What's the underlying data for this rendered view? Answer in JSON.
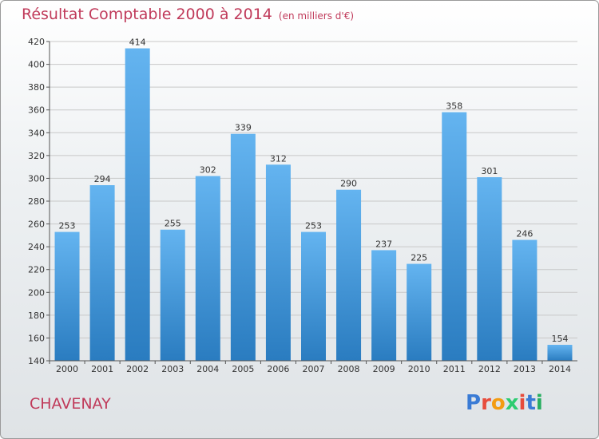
{
  "title": "Résultat Comptable 2000 à 2014",
  "subtitle": "(en milliers d'€)",
  "footer_name": "CHAVENAY",
  "logo": {
    "text": "Proxiti",
    "colors": [
      "#3a7bd5",
      "#e74c3c",
      "#f39c12",
      "#2ecc71",
      "#e74c3c",
      "#3a7bd5",
      "#27ae60"
    ]
  },
  "colors": {
    "title": "#c03a5a",
    "bar_top": "#64b4f0",
    "bar_bottom": "#2a7cc0",
    "grid": "#c8c8c8"
  },
  "chart_data": {
    "type": "bar",
    "categories": [
      "2000",
      "2001",
      "2002",
      "2003",
      "2004",
      "2005",
      "2006",
      "2007",
      "2008",
      "2009",
      "2010",
      "2011",
      "2012",
      "2013",
      "2014"
    ],
    "values": [
      253,
      294,
      414,
      255,
      302,
      339,
      312,
      253,
      290,
      237,
      225,
      358,
      301,
      246,
      154
    ],
    "ylim": [
      140,
      420
    ],
    "yticks": [
      140,
      160,
      180,
      200,
      220,
      240,
      260,
      280,
      300,
      320,
      340,
      360,
      380,
      400,
      420
    ],
    "grid": true
  }
}
